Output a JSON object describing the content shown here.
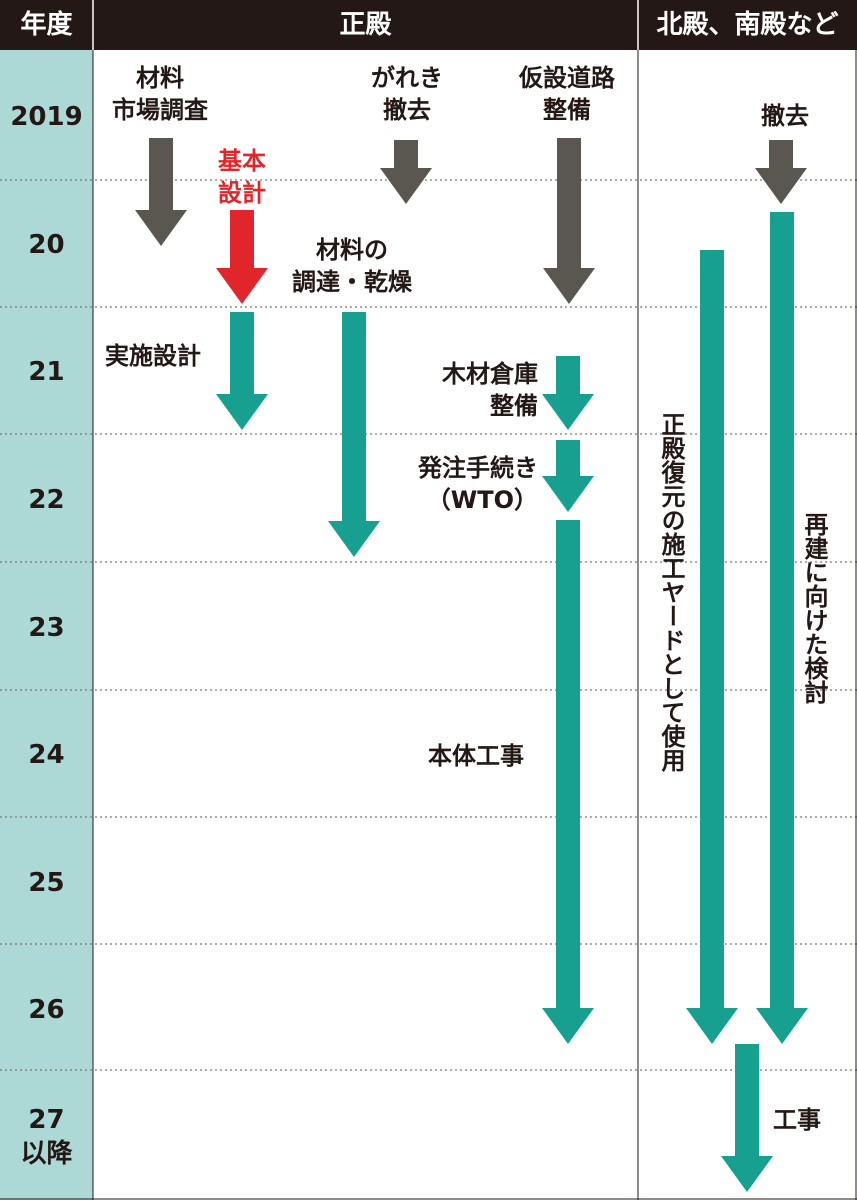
{
  "header": {
    "col_year": "年度",
    "col_seiden": "正殿",
    "col_others": "北殿、南殿など"
  },
  "years": [
    "2019",
    "20",
    "21",
    "22",
    "23",
    "24",
    "25",
    "26",
    "27\n以降"
  ],
  "tasks": {
    "material_survey": "材料\n市場調査",
    "basic_design": "基本\n設計",
    "rubble_removal": "がれき\n撤去",
    "temp_road": "仮設道路\n整備",
    "removal_other": "撤去",
    "procure_dry": "材料の\n調達・乾燥",
    "detailed_design": "実施設計",
    "lumber_warehouse": "木材倉庫\n整備",
    "ordering": "発注手続き\n（WTO）",
    "main_construction": "本体工事",
    "yard_use": "正殿復元の施工ヤードとして使用",
    "rebuild_study": "再建に向けた検討",
    "construction_other": "工事"
  },
  "colors": {
    "header_bg": "#231815",
    "year_col_bg": "#acd9d5",
    "arrow_gray": "#595750",
    "arrow_teal": "#17a090",
    "arrow_red": "#e0262a",
    "dotted_line": "#777777"
  }
}
